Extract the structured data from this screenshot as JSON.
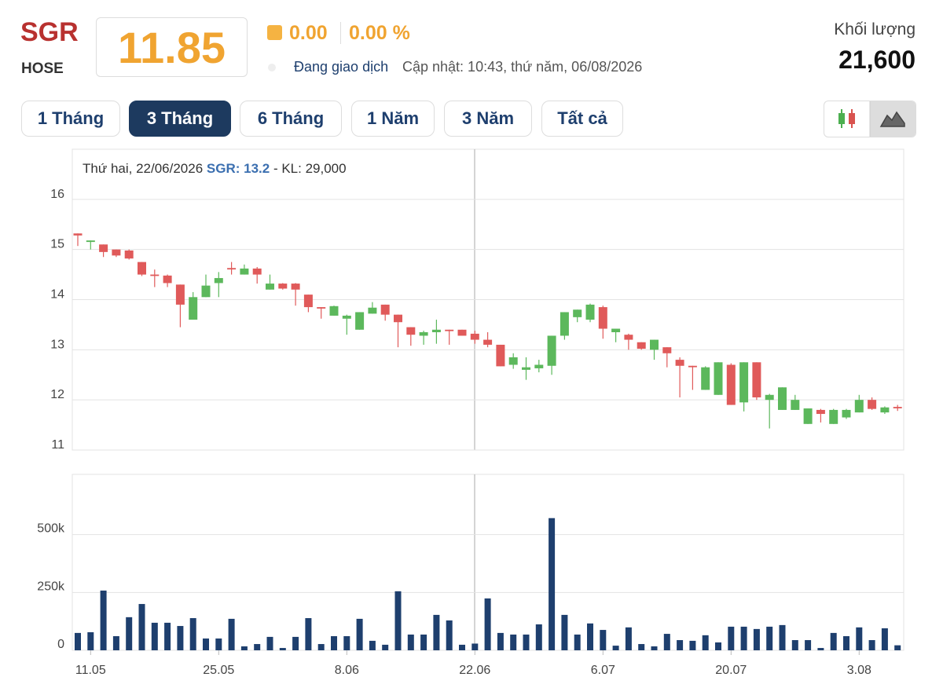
{
  "header": {
    "ticker": "SGR",
    "exchange": "HOSE",
    "price": "11.85",
    "change": "0.00",
    "change_percent": "0.00 %",
    "status": "Đang giao dịch",
    "updated": "Cập nhật: 10:43, thứ năm, 06/08/2026",
    "volume_label": "Khối lượng",
    "volume": "21,600"
  },
  "tabs": [
    "1 Tháng",
    "3 Tháng",
    "6 Tháng",
    "1 Năm",
    "3 Năm",
    "Tất cả"
  ],
  "chart_data": {
    "type": "candlestick",
    "tooltip": {
      "date": "Thứ hai, 22/06/2026",
      "price": "SGR: 13.2",
      "volume": "- KL: 29,000"
    },
    "categories": [
      null,
      "11.05",
      null,
      null,
      null,
      null,
      null,
      null,
      null,
      null,
      null,
      "25.05",
      null,
      null,
      null,
      null,
      null,
      null,
      null,
      null,
      null,
      "8.06",
      null,
      null,
      null,
      null,
      null,
      null,
      null,
      null,
      null,
      "22.06",
      null,
      null,
      null,
      null,
      null,
      null,
      null,
      null,
      null,
      "6.07",
      null,
      null,
      null,
      null,
      null,
      null,
      null,
      null,
      null,
      "20.07",
      null,
      null,
      null,
      null,
      null,
      null,
      null,
      null,
      null,
      "3.08",
      null,
      null,
      null
    ],
    "open": [
      15.32,
      15.15,
      15.1,
      15.0,
      14.98,
      14.75,
      14.5,
      14.48,
      14.3,
      13.6,
      14.05,
      14.33,
      14.63,
      14.5,
      14.62,
      14.2,
      14.32,
      14.32,
      14.1,
      13.85,
      13.68,
      13.62,
      13.4,
      13.72,
      13.9,
      13.7,
      13.45,
      13.28,
      13.35,
      13.4,
      13.4,
      13.32,
      13.2,
      13.1,
      12.7,
      12.6,
      12.63,
      12.68,
      13.28,
      13.65,
      13.6,
      13.85,
      13.35,
      13.3,
      13.15,
      13.0,
      13.05,
      12.8,
      12.68,
      12.2,
      12.1,
      12.7,
      11.95,
      12.75,
      12.0,
      11.8,
      11.8,
      11.52,
      11.8,
      11.52,
      11.65,
      11.75,
      12.0,
      11.75,
      11.86
    ],
    "high": [
      15.32,
      15.18,
      15.1,
      15.0,
      15.0,
      14.75,
      14.6,
      14.5,
      14.3,
      14.15,
      14.5,
      14.55,
      14.75,
      14.7,
      14.65,
      14.5,
      14.33,
      14.33,
      14.1,
      13.85,
      13.88,
      13.7,
      13.75,
      13.95,
      13.9,
      13.7,
      13.45,
      13.38,
      13.6,
      13.4,
      13.4,
      13.38,
      13.35,
      13.1,
      12.93,
      12.85,
      12.8,
      13.28,
      13.75,
      13.8,
      13.92,
      13.88,
      13.42,
      13.32,
      13.15,
      13.2,
      13.05,
      12.85,
      12.68,
      12.67,
      12.75,
      12.73,
      12.75,
      12.75,
      12.12,
      12.25,
      12.1,
      11.83,
      11.82,
      11.82,
      11.82,
      12.1,
      12.05,
      11.87,
      11.9
    ],
    "low": [
      15.07,
      15.0,
      14.85,
      14.85,
      14.8,
      14.47,
      14.25,
      14.25,
      13.45,
      13.6,
      14.05,
      14.05,
      14.5,
      14.5,
      14.32,
      14.2,
      14.2,
      13.88,
      13.75,
      13.62,
      13.68,
      13.3,
      13.4,
      13.72,
      13.58,
      13.05,
      13.08,
      13.1,
      13.12,
      13.1,
      13.28,
      13.12,
      13.05,
      12.67,
      12.62,
      12.4,
      12.55,
      12.5,
      13.2,
      13.55,
      13.55,
      13.22,
      13.15,
      13.0,
      13.0,
      12.8,
      12.65,
      12.05,
      12.2,
      12.2,
      12.1,
      11.9,
      11.77,
      12.0,
      11.43,
      11.8,
      11.8,
      11.52,
      11.55,
      11.52,
      11.62,
      11.75,
      11.8,
      11.72,
      11.78
    ],
    "close": [
      15.28,
      15.18,
      14.95,
      14.88,
      14.82,
      14.5,
      14.48,
      14.33,
      13.9,
      14.05,
      14.28,
      14.43,
      14.62,
      14.62,
      14.5,
      14.32,
      14.22,
      14.2,
      13.85,
      13.84,
      13.87,
      13.68,
      13.75,
      13.84,
      13.7,
      13.55,
      13.3,
      13.35,
      13.4,
      13.38,
      13.28,
      13.2,
      13.1,
      12.67,
      12.85,
      12.65,
      12.7,
      13.28,
      13.75,
      13.8,
      13.9,
      13.42,
      13.42,
      13.2,
      13.02,
      13.2,
      12.93,
      12.68,
      12.67,
      12.65,
      12.75,
      11.9,
      12.75,
      12.05,
      12.1,
      12.25,
      12.0,
      11.83,
      11.72,
      11.8,
      11.8,
      12.0,
      11.82,
      11.85,
      11.85
    ],
    "up_color": "#5cb85c",
    "down_color": "#e05a5a",
    "ylim": [
      11,
      17
    ],
    "yticks": [
      11,
      12,
      13,
      14,
      15,
      16
    ],
    "grid": true,
    "volume": {
      "values": [
        75000,
        78000,
        258000,
        61000,
        143000,
        200000,
        119000,
        119000,
        105000,
        139000,
        51000,
        51000,
        136000,
        17000,
        27000,
        58000,
        10000,
        58000,
        139000,
        27000,
        61000,
        61000,
        136000,
        41000,
        24000,
        255000,
        68000,
        68000,
        153000,
        129000,
        24000,
        29000,
        224000,
        75000,
        68000,
        68000,
        112000,
        571000,
        153000,
        68000,
        116000,
        88000,
        20000,
        99000,
        27000,
        17000,
        71000,
        44000,
        41000,
        65000,
        34000,
        102000,
        102000,
        92000,
        102000,
        109000,
        44000,
        44000,
        10000,
        75000,
        61000,
        99000,
        44000,
        95000,
        21600
      ],
      "color": "#1e3f6e",
      "ylim": [
        0,
        760000
      ],
      "yticks": [
        0,
        {
          "value": 250000,
          "label": "250k"
        },
        {
          "value": 500000,
          "label": "500k"
        }
      ]
    }
  }
}
